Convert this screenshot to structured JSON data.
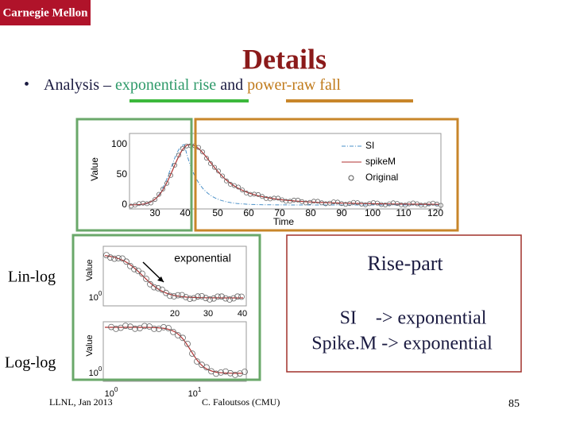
{
  "header": {
    "logo": "Carnegie Mellon",
    "title": "Details"
  },
  "bullet": {
    "parts": [
      "Analysis – ",
      "exponential rise",
      " and ",
      "power-raw fall"
    ]
  },
  "top_chart": {
    "y_label": "Value",
    "x_label": "Time",
    "yticks": [
      100,
      50,
      0
    ],
    "xticks": [
      30,
      40,
      50,
      60,
      70,
      80,
      90,
      100,
      110,
      120
    ],
    "legend": [
      "SI",
      "spikeM",
      "Original"
    ]
  },
  "lin_log": {
    "side_label": "Lin-log",
    "y_label": "Value",
    "annotation": "exponential",
    "ytick": {
      "base": "10",
      "exp": "0"
    },
    "xticks": [
      20,
      30,
      40
    ]
  },
  "log_log": {
    "side_label": "Log-log",
    "y_label": "Value",
    "ytick": {
      "base": "10",
      "exp": "0"
    },
    "xticks": [
      {
        "base": "10",
        "exp": "0"
      },
      {
        "base": "10",
        "exp": "1"
      }
    ]
  },
  "box": {
    "title": "Rise-part",
    "lines": [
      "SI    -> exponential",
      "Spike.M -> exponential"
    ]
  },
  "footer": {
    "left": "LLNL, Jan 2013",
    "center": "C. Faloutsos (CMU)",
    "page": "85"
  }
}
